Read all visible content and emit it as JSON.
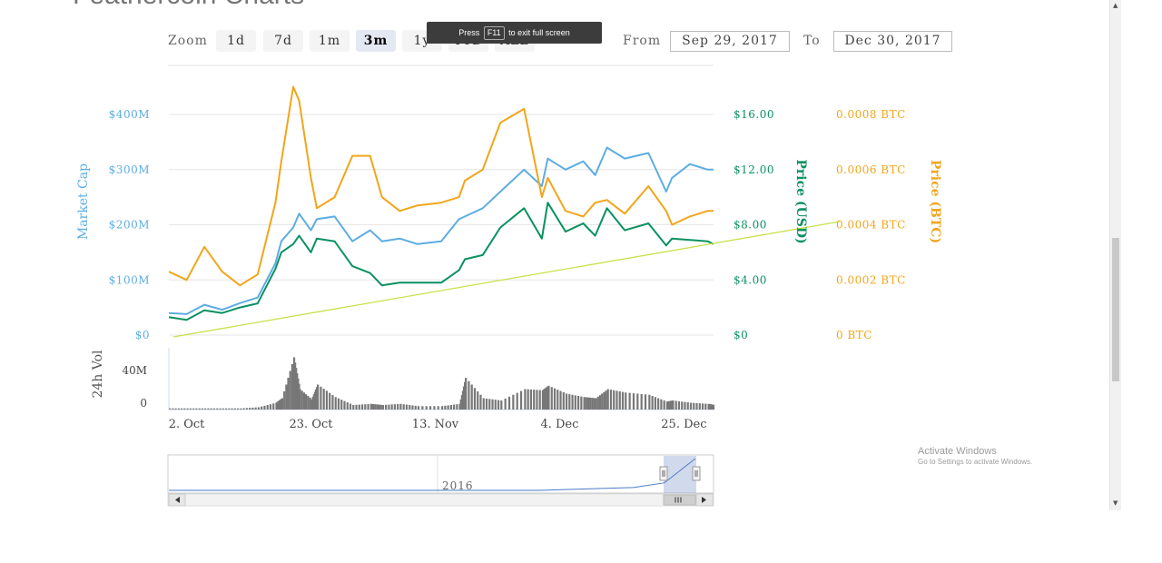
{
  "page": {
    "title": "Feathercoin Charts"
  },
  "range_selector": {
    "zoom_label": "Zoom",
    "buttons": [
      "1d",
      "7d",
      "1m",
      "3m",
      "1y",
      "YTD",
      "ALL"
    ],
    "active": "3m",
    "from_label": "From",
    "from_value": "Sep 29, 2017",
    "to_label": "To",
    "to_value": "Dec 30, 2017"
  },
  "fullscreen_toast": {
    "prefix": "Press",
    "key": "F11",
    "suffix": "to exit full screen"
  },
  "watermark": {
    "line1": "Activate Windows",
    "line2": "Go to Settings to activate Windows."
  },
  "colors": {
    "market_cap": "#5dade2",
    "price_usd": "#0a9160",
    "price_btc": "#f2a51a",
    "volume": "#777777",
    "trendline": "#c6e24a"
  },
  "chart_data": {
    "type": "line",
    "x_ticks": [
      "2. Oct",
      "23. Oct",
      "13. Nov",
      "4. Dec",
      "25. Dec"
    ],
    "axes": {
      "market_cap": {
        "label": "Market Cap",
        "ticks": [
          "$0",
          "$100M",
          "$200M",
          "$300M",
          "$400M"
        ],
        "range": [
          0,
          400
        ]
      },
      "price_usd": {
        "label": "Price (USD)",
        "ticks": [
          "$0",
          "$4.00",
          "$8.00",
          "$12.00",
          "$16.00"
        ],
        "range": [
          0,
          16
        ]
      },
      "price_btc": {
        "label": "Price (BTC)",
        "ticks": [
          "0 BTC",
          "0.0002 BTC",
          "0.0004 BTC",
          "0.0006 BTC",
          "0.0008 BTC"
        ],
        "range": [
          0,
          0.0008
        ]
      },
      "volume": {
        "label": "24h Vol",
        "ticks": [
          "0",
          "40M"
        ],
        "range": [
          0,
          40
        ]
      }
    },
    "x": [
      0,
      3,
      6,
      9,
      12,
      15,
      18,
      19,
      21,
      22,
      24,
      25,
      28,
      31,
      34,
      36,
      39,
      42,
      46,
      49,
      50,
      53,
      56,
      60,
      63,
      64,
      67,
      70,
      72,
      74,
      77,
      81,
      84,
      85,
      88,
      91,
      92
    ],
    "series": [
      {
        "name": "Market Cap",
        "unit": "$M",
        "values": [
          40,
          38,
          55,
          46,
          58,
          68,
          130,
          170,
          195,
          220,
          190,
          210,
          215,
          170,
          190,
          170,
          175,
          165,
          170,
          210,
          215,
          230,
          260,
          300,
          270,
          320,
          300,
          315,
          290,
          340,
          320,
          330,
          260,
          285,
          310,
          300,
          300
        ]
      },
      {
        "name": "Price (USD)",
        "unit": "USD",
        "values": [
          1.3,
          1.1,
          1.8,
          1.6,
          2.0,
          2.3,
          4.8,
          6.0,
          6.6,
          7.2,
          6.0,
          7.0,
          6.8,
          5.0,
          4.5,
          3.6,
          3.8,
          3.8,
          3.8,
          4.7,
          5.5,
          5.8,
          7.8,
          9.2,
          7.0,
          9.6,
          7.5,
          8.1,
          7.2,
          9.2,
          7.6,
          8.1,
          6.5,
          7.0,
          6.9,
          6.8,
          6.6
        ]
      },
      {
        "name": "Price (BTC)",
        "unit": "BTC",
        "values": [
          0.00023,
          0.0002,
          0.00032,
          0.00023,
          0.00018,
          0.00022,
          0.00048,
          0.00063,
          0.0009,
          0.00085,
          0.00057,
          0.00046,
          0.0005,
          0.00065,
          0.00065,
          0.0005,
          0.00045,
          0.00047,
          0.00048,
          0.0005,
          0.00056,
          0.0006,
          0.00077,
          0.00082,
          0.0005,
          0.00057,
          0.00045,
          0.00043,
          0.00048,
          0.00049,
          0.00044,
          0.00054,
          0.00045,
          0.0004,
          0.00043,
          0.00045,
          0.00045
        ]
      },
      {
        "name": "24h Vol",
        "unit": "M",
        "values": [
          1,
          1,
          1,
          1,
          1,
          2,
          6,
          10,
          46,
          18,
          9,
          22,
          11,
          4,
          5,
          4,
          5,
          3,
          3,
          5,
          28,
          10,
          8,
          18,
          17,
          21,
          14,
          11,
          10,
          18,
          15,
          13,
          7,
          8,
          6,
          5,
          4
        ]
      }
    ],
    "navigator": {
      "label": "2016",
      "values": [
        1,
        1,
        1,
        1,
        1,
        1,
        1,
        1,
        1,
        1,
        1,
        1,
        1,
        2,
        3,
        4,
        9,
        35
      ]
    },
    "legend": "none",
    "grid": true
  }
}
